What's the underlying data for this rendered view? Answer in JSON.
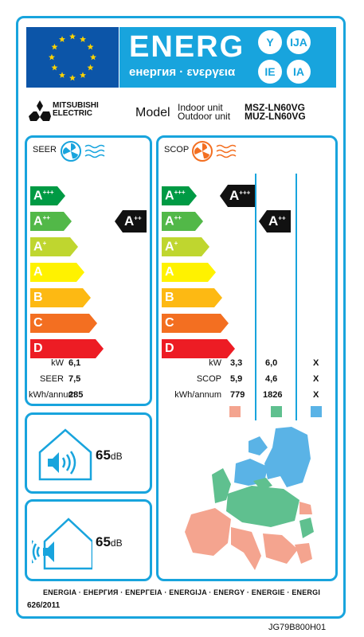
{
  "header": {
    "title": "ENERG",
    "subtitle": "енергия · ενεργεια",
    "lang_badges": [
      "Y",
      "IJA",
      "IE",
      "IA"
    ]
  },
  "brand": {
    "line1": "MITSUBISHI",
    "line2": "ELECTRIC"
  },
  "model": {
    "label": "Model",
    "indoor_label": "Indoor unit",
    "outdoor_label": "Outdoor unit",
    "indoor_value": "MSZ-LN60VG",
    "outdoor_value": "MUZ-LN60VG"
  },
  "scale": [
    "A",
    "A",
    "A",
    "A",
    "B",
    "C",
    "D"
  ],
  "scale_sup": [
    "+++",
    "++",
    "+",
    "",
    "",
    "",
    ""
  ],
  "colors": [
    "#009a44",
    "#52b848",
    "#bfd62f",
    "#fff200",
    "#fdb913",
    "#f36f21",
    "#ed1c24"
  ],
  "seer": {
    "label": "SEER",
    "class": "A",
    "class_sup": "++",
    "rows": [
      {
        "label": "kW",
        "value": "6,1"
      },
      {
        "label": "SEER",
        "value": "7,5"
      },
      {
        "label": "kWh/annum",
        "value": "285"
      }
    ]
  },
  "scop": {
    "label": "SCOP",
    "classes": [
      {
        "class": "A",
        "sup": "+++"
      },
      {
        "class": "A",
        "sup": "++"
      }
    ],
    "rows": [
      {
        "label": "kW",
        "values": [
          "3,3",
          "6,0",
          "X"
        ]
      },
      {
        "label": "SCOP",
        "values": [
          "5,9",
          "4,6",
          "X"
        ]
      },
      {
        "label": "kWh/annum",
        "values": [
          "779",
          "1826",
          "X"
        ]
      }
    ],
    "zone_colors": [
      "#f4a48f",
      "#5fc08f",
      "#5ab3e6"
    ]
  },
  "noise": {
    "indoor": {
      "value": "65",
      "unit": "dB"
    },
    "outdoor": {
      "value": "65",
      "unit": "dB"
    }
  },
  "footer": {
    "languages": "ENERGIA · ЕНЕРГИЯ · ΕΝΕΡΓΕΙΑ · ENERGIJA · ENERGY · ENERGIE · ENERGI",
    "regulation": "626/2011"
  },
  "label_code": "JG79B800H01"
}
